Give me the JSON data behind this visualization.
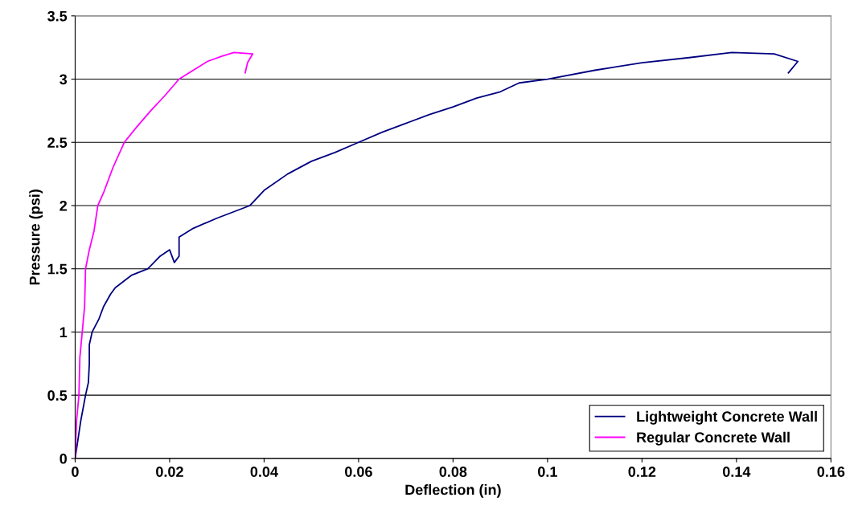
{
  "chart_data": {
    "type": "line",
    "xlabel": "Deflection (in)",
    "ylabel": "Pressure (psi)",
    "xlim": [
      0,
      0.16
    ],
    "xticks": [
      {
        "value": 0,
        "label": "0"
      },
      0.02,
      0.04,
      0.06,
      0.08,
      0.1,
      0.12,
      0.14,
      0.16
    ],
    "ylim": [
      0,
      3.5
    ],
    "yticks": [
      {
        "value": 0,
        "label": "0"
      },
      0.5,
      {
        "value": 1,
        "label": "1"
      },
      1.5,
      {
        "value": 2,
        "label": "2"
      },
      2.5,
      {
        "value": 3,
        "label": "3"
      },
      3.5
    ],
    "grid": "y",
    "legend": "bottom right",
    "marker": "none",
    "line_style": "solid",
    "series": [
      {
        "name": "Lightweight Concrete Wall",
        "color": "#000080",
        "x": [
          0,
          0.0012,
          0.0022,
          0.0028,
          0.003,
          0.003,
          0.0036,
          0.005,
          0.006,
          0.0075,
          0.0085,
          0.012,
          0.0154,
          0.018,
          0.02,
          0.021,
          0.022,
          0.022,
          0.025,
          0.03,
          0.037,
          0.04,
          0.045,
          0.05,
          0.055,
          0.06,
          0.065,
          0.07,
          0.075,
          0.08,
          0.085,
          0.09,
          0.094,
          0.1,
          0.11,
          0.12,
          0.13,
          0.139,
          0.148,
          0.153,
          0.151
        ],
        "values": [
          0,
          0.3,
          0.5,
          0.6,
          0.75,
          0.9,
          1.0,
          1.1,
          1.2,
          1.3,
          1.35,
          1.45,
          1.5,
          1.6,
          1.65,
          1.55,
          1.6,
          1.75,
          1.82,
          1.9,
          2.0,
          2.12,
          2.25,
          2.35,
          2.42,
          2.5,
          2.58,
          2.65,
          2.72,
          2.78,
          2.85,
          2.9,
          2.97,
          3.0,
          3.07,
          3.13,
          3.17,
          3.21,
          3.2,
          3.14,
          3.05
        ]
      },
      {
        "name": "Regular Concrete Wall",
        "color": "#ff00ff",
        "x": [
          0,
          0.0003,
          0.0008,
          0.001,
          0.0015,
          0.002,
          0.0022,
          0.003,
          0.004,
          0.0048,
          0.006,
          0.008,
          0.0104,
          0.013,
          0.016,
          0.019,
          0.022,
          0.025,
          0.028,
          0.031,
          0.0336,
          0.0376,
          0.0365,
          0.036
        ],
        "values": [
          0,
          0.3,
          0.5,
          0.8,
          1.0,
          1.2,
          1.5,
          1.65,
          1.8,
          2.0,
          2.1,
          2.3,
          2.5,
          2.62,
          2.75,
          2.87,
          3.0,
          3.07,
          3.14,
          3.18,
          3.21,
          3.2,
          3.13,
          3.05
        ]
      }
    ]
  }
}
